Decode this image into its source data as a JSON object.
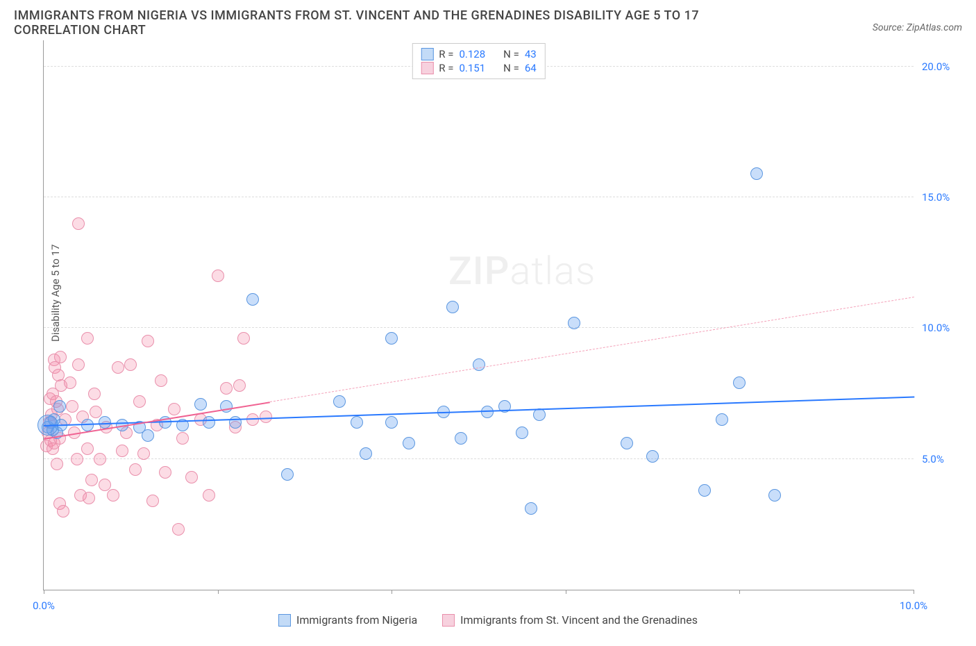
{
  "title": "IMMIGRANTS FROM NIGERIA VS IMMIGRANTS FROM ST. VINCENT AND THE GRENADINES DISABILITY AGE 5 TO 17 CORRELATION CHART",
  "source": "Source: ZipAtlas.com",
  "watermark": "ZIPatlas",
  "y_axis_label": "Disability Age 5 to 17",
  "chart": {
    "type": "scatter",
    "xlim": [
      0,
      10
    ],
    "ylim": [
      0,
      21
    ],
    "x_ticks": [
      0,
      2,
      4,
      6,
      8,
      10
    ],
    "x_tick_labels_shown": {
      "0": "0.0%",
      "10": "10.0%"
    },
    "y_ticks": [
      5,
      10,
      15,
      20
    ],
    "y_tick_labels": {
      "5": "5.0%",
      "10": "10.0%",
      "15": "15.0%",
      "20": "20.0%"
    },
    "background_color": "#ffffff",
    "grid_color": "#dddddd",
    "axis_color": "#999999",
    "tick_label_color": "#2979ff"
  },
  "series": [
    {
      "id": "nigeria",
      "label": "Immigrants from Nigeria",
      "color_fill": "rgba(100,160,240,0.35)",
      "color_stroke": "#5a96e0",
      "swatch_fill": "#c3dbf7",
      "swatch_stroke": "#5a96e0",
      "r": "0.128",
      "n": "43",
      "point_radius": 9,
      "trend": {
        "from": [
          0,
          6.3
        ],
        "to": [
          10,
          7.4
        ],
        "color": "#2979ff",
        "width": 2.5,
        "dash": "solid"
      },
      "points": [
        [
          0.05,
          6.2
        ],
        [
          0.08,
          6.4
        ],
        [
          0.1,
          6.1
        ],
        [
          0.12,
          6.5
        ],
        [
          0.15,
          6.0
        ],
        [
          0.18,
          7.0
        ],
        [
          0.2,
          6.3
        ],
        [
          0.5,
          6.3
        ],
        [
          0.7,
          6.4
        ],
        [
          0.9,
          6.3
        ],
        [
          1.1,
          6.2
        ],
        [
          1.2,
          5.9
        ],
        [
          1.4,
          6.4
        ],
        [
          1.6,
          6.3
        ],
        [
          1.8,
          7.1
        ],
        [
          1.9,
          6.4
        ],
        [
          2.1,
          7.0
        ],
        [
          2.2,
          6.4
        ],
        [
          2.4,
          11.1
        ],
        [
          2.8,
          4.4
        ],
        [
          3.4,
          7.2
        ],
        [
          3.6,
          6.4
        ],
        [
          3.7,
          5.2
        ],
        [
          4.0,
          9.6
        ],
        [
          4.0,
          6.4
        ],
        [
          4.2,
          5.6
        ],
        [
          4.6,
          6.8
        ],
        [
          4.7,
          10.8
        ],
        [
          4.8,
          5.8
        ],
        [
          5.0,
          8.6
        ],
        [
          5.1,
          6.8
        ],
        [
          5.3,
          7.0
        ],
        [
          5.7,
          6.7
        ],
        [
          5.5,
          6.0
        ],
        [
          5.6,
          3.1
        ],
        [
          6.1,
          10.2
        ],
        [
          6.7,
          5.6
        ],
        [
          7.0,
          5.1
        ],
        [
          7.6,
          3.8
        ],
        [
          7.8,
          6.5
        ],
        [
          8.0,
          7.9
        ],
        [
          8.2,
          15.9
        ],
        [
          8.4,
          3.6
        ]
      ]
    },
    {
      "id": "stvincent",
      "label": "Immigrants from St. Vincent and the Grenadines",
      "color_fill": "rgba(245,140,170,0.30)",
      "color_stroke": "#e98fab",
      "swatch_fill": "#f7d1de",
      "swatch_stroke": "#e98fab",
      "r": "0.151",
      "n": "64",
      "point_radius": 9,
      "trend": {
        "from": [
          0,
          5.8
        ],
        "to": [
          2.6,
          7.2
        ],
        "color": "#f06292",
        "width": 2,
        "dash": "solid"
      },
      "trend_ext": {
        "from": [
          2.6,
          7.2
        ],
        "to": [
          10,
          11.2
        ],
        "color": "#f4a0b8",
        "width": 1.2,
        "dash": "dashed"
      },
      "points": [
        [
          0.03,
          5.5
        ],
        [
          0.05,
          6.0
        ],
        [
          0.06,
          6.4
        ],
        [
          0.07,
          7.3
        ],
        [
          0.08,
          5.7
        ],
        [
          0.09,
          6.7
        ],
        [
          0.1,
          5.4
        ],
        [
          0.1,
          7.5
        ],
        [
          0.12,
          8.8
        ],
        [
          0.12,
          5.6
        ],
        [
          0.13,
          8.5
        ],
        [
          0.14,
          7.2
        ],
        [
          0.15,
          4.8
        ],
        [
          0.16,
          6.9
        ],
        [
          0.17,
          8.2
        ],
        [
          0.18,
          5.8
        ],
        [
          0.18,
          3.3
        ],
        [
          0.19,
          8.9
        ],
        [
          0.2,
          7.8
        ],
        [
          0.22,
          3.0
        ],
        [
          0.25,
          6.5
        ],
        [
          0.3,
          7.9
        ],
        [
          0.33,
          7.0
        ],
        [
          0.35,
          6.0
        ],
        [
          0.38,
          5.0
        ],
        [
          0.4,
          8.6
        ],
        [
          0.4,
          14.0
        ],
        [
          0.42,
          3.6
        ],
        [
          0.45,
          6.6
        ],
        [
          0.5,
          5.4
        ],
        [
          0.5,
          9.6
        ],
        [
          0.52,
          3.5
        ],
        [
          0.55,
          4.2
        ],
        [
          0.58,
          7.5
        ],
        [
          0.6,
          6.8
        ],
        [
          0.65,
          5.0
        ],
        [
          0.7,
          4.0
        ],
        [
          0.72,
          6.2
        ],
        [
          0.8,
          3.6
        ],
        [
          0.85,
          8.5
        ],
        [
          0.9,
          5.3
        ],
        [
          0.95,
          6.0
        ],
        [
          1.0,
          8.6
        ],
        [
          1.05,
          4.6
        ],
        [
          1.1,
          7.2
        ],
        [
          1.15,
          5.2
        ],
        [
          1.2,
          9.5
        ],
        [
          1.25,
          3.4
        ],
        [
          1.3,
          6.3
        ],
        [
          1.35,
          8.0
        ],
        [
          1.4,
          4.5
        ],
        [
          1.5,
          6.9
        ],
        [
          1.55,
          2.3
        ],
        [
          1.6,
          5.8
        ],
        [
          1.7,
          4.3
        ],
        [
          1.8,
          6.5
        ],
        [
          1.9,
          3.6
        ],
        [
          2.0,
          12.0
        ],
        [
          2.1,
          7.7
        ],
        [
          2.2,
          6.2
        ],
        [
          2.25,
          7.8
        ],
        [
          2.3,
          9.6
        ],
        [
          2.4,
          6.5
        ],
        [
          2.55,
          6.6
        ]
      ]
    }
  ],
  "legend_top_labels": {
    "r_prefix": "R =",
    "n_prefix": "N ="
  }
}
